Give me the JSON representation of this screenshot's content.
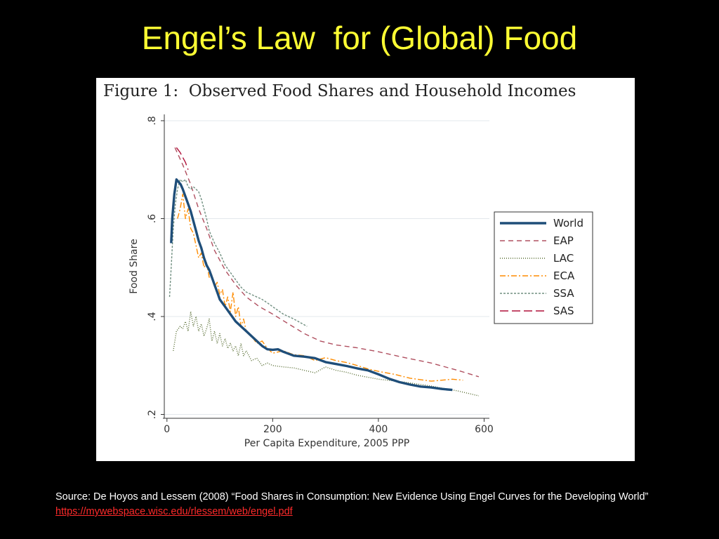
{
  "slide": {
    "title": "Engel’s Law  for (Global) Food",
    "title_color": "#ffff33",
    "source_text": "Source: De Hoyos and Lessem (2008) “Food Shares in Consumption: New Evidence Using Engel Curves for the Developing World” ",
    "source_link": "https://mywebspace.wisc.edu/rlessem/web/engel.pdf",
    "link_color": "#ff2a2a"
  },
  "chart_data": {
    "type": "line",
    "title": "Figure 1:  Observed Food Shares and Household Incomes",
    "xlabel": "Per Capita Expenditure, 2005 PPP",
    "ylabel": "Food Share",
    "xlim": [
      -5,
      610
    ],
    "ylim": [
      0.195,
      0.81
    ],
    "xticks": [
      0,
      200,
      400,
      600
    ],
    "yticks": [
      0.2,
      0.4,
      0.6,
      0.8
    ],
    "ytick_labels": [
      ".2",
      ".4",
      ".6",
      ".8"
    ],
    "grid": true,
    "legend_position": "right",
    "series": [
      {
        "name": "World",
        "color": "#1f4e79",
        "dash": "solid",
        "points": [
          [
            8,
            0.55
          ],
          [
            10,
            0.6
          ],
          [
            14,
            0.65
          ],
          [
            18,
            0.68
          ],
          [
            22,
            0.675
          ],
          [
            26,
            0.67
          ],
          [
            30,
            0.66
          ],
          [
            35,
            0.645
          ],
          [
            40,
            0.63
          ],
          [
            45,
            0.615
          ],
          [
            50,
            0.595
          ],
          [
            55,
            0.575
          ],
          [
            60,
            0.555
          ],
          [
            65,
            0.54
          ],
          [
            70,
            0.52
          ],
          [
            75,
            0.505
          ],
          [
            80,
            0.495
          ],
          [
            85,
            0.48
          ],
          [
            90,
            0.465
          ],
          [
            95,
            0.45
          ],
          [
            100,
            0.435
          ],
          [
            110,
            0.42
          ],
          [
            120,
            0.405
          ],
          [
            130,
            0.39
          ],
          [
            140,
            0.38
          ],
          [
            150,
            0.37
          ],
          [
            160,
            0.36
          ],
          [
            170,
            0.35
          ],
          [
            180,
            0.34
          ],
          [
            190,
            0.333
          ],
          [
            200,
            0.332
          ],
          [
            210,
            0.333
          ],
          [
            220,
            0.328
          ],
          [
            240,
            0.32
          ],
          [
            260,
            0.318
          ],
          [
            280,
            0.315
          ],
          [
            300,
            0.307
          ],
          [
            320,
            0.303
          ],
          [
            340,
            0.299
          ],
          [
            360,
            0.294
          ],
          [
            380,
            0.29
          ],
          [
            400,
            0.282
          ],
          [
            420,
            0.273
          ],
          [
            440,
            0.266
          ],
          [
            460,
            0.261
          ],
          [
            480,
            0.257
          ],
          [
            500,
            0.255
          ],
          [
            520,
            0.252
          ],
          [
            540,
            0.25
          ]
        ]
      },
      {
        "name": "EAP",
        "color": "#b05060",
        "dash": "7,5",
        "points": [
          [
            15,
            0.745
          ],
          [
            30,
            0.71
          ],
          [
            45,
            0.67
          ],
          [
            60,
            0.62
          ],
          [
            75,
            0.58
          ],
          [
            90,
            0.535
          ],
          [
            110,
            0.495
          ],
          [
            130,
            0.465
          ],
          [
            150,
            0.44
          ],
          [
            175,
            0.42
          ],
          [
            200,
            0.405
          ],
          [
            230,
            0.385
          ],
          [
            260,
            0.365
          ],
          [
            290,
            0.35
          ],
          [
            320,
            0.342
          ],
          [
            360,
            0.336
          ],
          [
            400,
            0.328
          ],
          [
            450,
            0.316
          ],
          [
            500,
            0.305
          ],
          [
            550,
            0.29
          ],
          [
            590,
            0.277
          ]
        ]
      },
      {
        "name": "LAC",
        "color": "#556b2f",
        "dash": "1,2",
        "points": [
          [
            12,
            0.33
          ],
          [
            18,
            0.37
          ],
          [
            25,
            0.38
          ],
          [
            30,
            0.375
          ],
          [
            35,
            0.39
          ],
          [
            40,
            0.37
          ],
          [
            45,
            0.41
          ],
          [
            50,
            0.38
          ],
          [
            55,
            0.4
          ],
          [
            60,
            0.37
          ],
          [
            65,
            0.385
          ],
          [
            70,
            0.36
          ],
          [
            75,
            0.375
          ],
          [
            80,
            0.395
          ],
          [
            85,
            0.35
          ],
          [
            90,
            0.37
          ],
          [
            95,
            0.345
          ],
          [
            100,
            0.365
          ],
          [
            105,
            0.34
          ],
          [
            110,
            0.355
          ],
          [
            115,
            0.335
          ],
          [
            120,
            0.345
          ],
          [
            125,
            0.33
          ],
          [
            130,
            0.34
          ],
          [
            135,
            0.32
          ],
          [
            140,
            0.345
          ],
          [
            145,
            0.32
          ],
          [
            150,
            0.33
          ],
          [
            160,
            0.31
          ],
          [
            170,
            0.315
          ],
          [
            180,
            0.3
          ],
          [
            190,
            0.305
          ],
          [
            200,
            0.3
          ],
          [
            220,
            0.297
          ],
          [
            240,
            0.295
          ],
          [
            260,
            0.29
          ],
          [
            280,
            0.285
          ],
          [
            300,
            0.297
          ],
          [
            320,
            0.29
          ],
          [
            340,
            0.286
          ],
          [
            360,
            0.28
          ],
          [
            380,
            0.276
          ],
          [
            400,
            0.272
          ],
          [
            450,
            0.266
          ],
          [
            500,
            0.258
          ],
          [
            550,
            0.248
          ],
          [
            590,
            0.238
          ]
        ]
      },
      {
        "name": "ECA",
        "color": "#ff8c00",
        "dash": "8,3,2,3",
        "points": [
          [
            20,
            0.6
          ],
          [
            25,
            0.62
          ],
          [
            30,
            0.65
          ],
          [
            35,
            0.6
          ],
          [
            40,
            0.62
          ],
          [
            45,
            0.58
          ],
          [
            50,
            0.57
          ],
          [
            55,
            0.545
          ],
          [
            60,
            0.52
          ],
          [
            65,
            0.53
          ],
          [
            70,
            0.5
          ],
          [
            75,
            0.51
          ],
          [
            80,
            0.48
          ],
          [
            85,
            0.485
          ],
          [
            90,
            0.46
          ],
          [
            95,
            0.47
          ],
          [
            100,
            0.445
          ],
          [
            105,
            0.455
          ],
          [
            110,
            0.42
          ],
          [
            115,
            0.44
          ],
          [
            120,
            0.41
          ],
          [
            125,
            0.45
          ],
          [
            130,
            0.4
          ],
          [
            135,
            0.42
          ],
          [
            140,
            0.38
          ],
          [
            145,
            0.395
          ],
          [
            150,
            0.37
          ],
          [
            160,
            0.36
          ],
          [
            170,
            0.345
          ],
          [
            180,
            0.35
          ],
          [
            190,
            0.335
          ],
          [
            200,
            0.325
          ],
          [
            220,
            0.33
          ],
          [
            240,
            0.322
          ],
          [
            260,
            0.32
          ],
          [
            280,
            0.31
          ],
          [
            300,
            0.316
          ],
          [
            320,
            0.31
          ],
          [
            340,
            0.306
          ],
          [
            360,
            0.3
          ],
          [
            380,
            0.293
          ],
          [
            400,
            0.288
          ],
          [
            430,
            0.282
          ],
          [
            460,
            0.274
          ],
          [
            500,
            0.268
          ],
          [
            540,
            0.272
          ],
          [
            560,
            0.27
          ]
        ]
      },
      {
        "name": "SSA",
        "color": "#708f80",
        "dash": "3,2",
        "points": [
          [
            5,
            0.44
          ],
          [
            8,
            0.5
          ],
          [
            12,
            0.58
          ],
          [
            16,
            0.63
          ],
          [
            20,
            0.66
          ],
          [
            25,
            0.68
          ],
          [
            30,
            0.675
          ],
          [
            35,
            0.68
          ],
          [
            40,
            0.665
          ],
          [
            45,
            0.66
          ],
          [
            50,
            0.665
          ],
          [
            55,
            0.66
          ],
          [
            60,
            0.655
          ],
          [
            65,
            0.64
          ],
          [
            70,
            0.62
          ],
          [
            75,
            0.6
          ],
          [
            80,
            0.575
          ],
          [
            90,
            0.55
          ],
          [
            100,
            0.53
          ],
          [
            110,
            0.505
          ],
          [
            120,
            0.49
          ],
          [
            130,
            0.475
          ],
          [
            140,
            0.46
          ],
          [
            150,
            0.45
          ],
          [
            160,
            0.445
          ],
          [
            170,
            0.44
          ],
          [
            180,
            0.435
          ],
          [
            190,
            0.428
          ],
          [
            200,
            0.42
          ],
          [
            220,
            0.405
          ],
          [
            240,
            0.395
          ],
          [
            265,
            0.38
          ]
        ]
      },
      {
        "name": "SAS",
        "color": "#b0103a",
        "dash": "12,5",
        "points": [
          [
            18,
            0.745
          ],
          [
            25,
            0.735
          ],
          [
            30,
            0.725
          ],
          [
            35,
            0.715
          ],
          [
            40,
            0.7
          ]
        ]
      }
    ]
  }
}
